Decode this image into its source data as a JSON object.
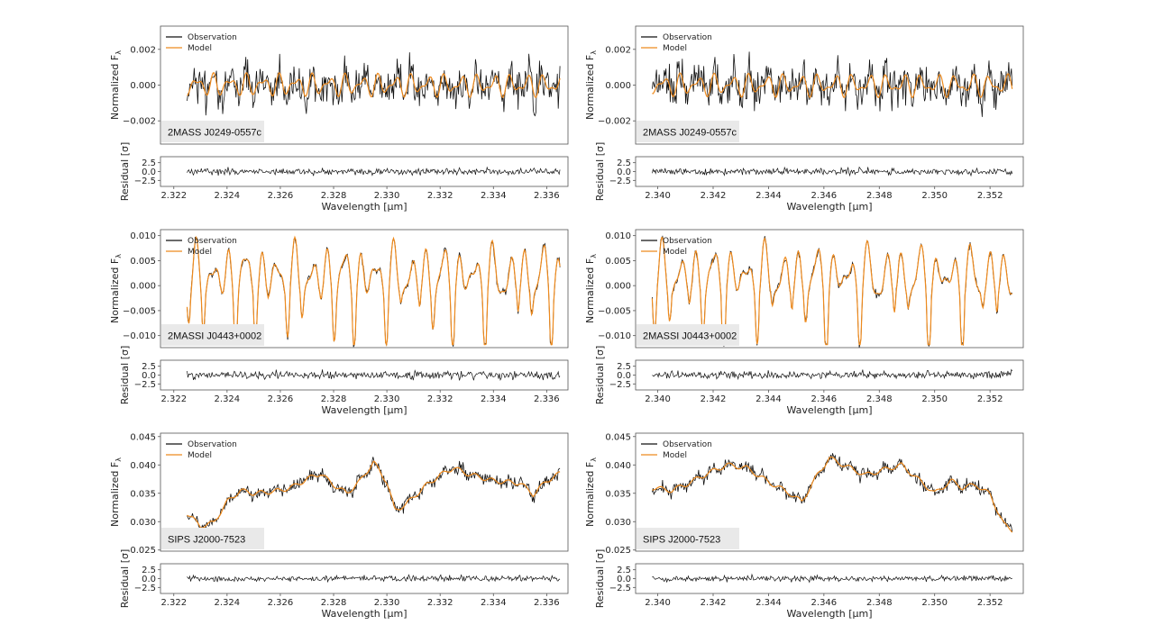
{
  "colors": {
    "observation": "#111111",
    "model": "#ee8a1d",
    "frame": "#555555",
    "tag_bg": "#e9e9e9"
  },
  "axes_text": {
    "ylabel_main": "Normalized F",
    "ylabel_main_sub": "λ",
    "ylabel_resid": "Residual [σ]",
    "xlabel": "Wavelength [μm]"
  },
  "legend": {
    "observation": "Observation",
    "model": "Model"
  },
  "chart_data": [
    {
      "type": "line",
      "panel": "row1-left",
      "object": "2MASS J0249-0557c",
      "xlim": [
        2.3215,
        2.3368
      ],
      "xticks": [
        "2.322",
        "2.324",
        "2.326",
        "2.328",
        "2.330",
        "2.332",
        "2.334",
        "2.336"
      ],
      "x_data_range": [
        2.3225,
        2.3365
      ],
      "ylim": [
        -0.0033,
        0.0033
      ],
      "yticks": [
        "0.002",
        "0.000",
        "−0.002"
      ],
      "ytick_values": [
        0.002,
        0.0,
        -0.002
      ],
      "resid_ylim": [
        -4.2,
        4.2
      ],
      "resid_yticks": [
        "2.5",
        "0.0",
        "−2.5"
      ],
      "resid_ytick_values": [
        2.5,
        0.0,
        -2.5
      ],
      "series": [
        {
          "name": "Observation",
          "trend": "noisy, mean 0, amplitude ~0.002"
        },
        {
          "name": "Model",
          "trend": "oscillating about 0, amplitude ~0.0007"
        }
      ],
      "residual_amplitude": 0.9
    },
    {
      "type": "line",
      "panel": "row1-right",
      "object": "2MASS J0249-0557c",
      "xlim": [
        2.3392,
        2.3532
      ],
      "xticks": [
        "2.340",
        "2.342",
        "2.344",
        "2.346",
        "2.348",
        "2.350",
        "2.352"
      ],
      "x_data_range": [
        2.3398,
        2.3528
      ],
      "ylim": [
        -0.0033,
        0.0033
      ],
      "yticks": [
        "0.002",
        "0.000",
        "−0.002"
      ],
      "ytick_values": [
        0.002,
        0.0,
        -0.002
      ],
      "resid_ylim": [
        -4.2,
        4.2
      ],
      "resid_yticks": [
        "2.5",
        "0.0",
        "−2.5"
      ],
      "resid_ytick_values": [
        2.5,
        0.0,
        -2.5
      ],
      "series": [
        {
          "name": "Observation",
          "trend": "noisy, mean 0, amplitude ~0.002"
        },
        {
          "name": "Model",
          "trend": "oscillating about 0, amplitude ~0.0007"
        }
      ],
      "residual_amplitude": 0.9
    },
    {
      "type": "line",
      "panel": "row2-left",
      "object": "2MASSI J0443+0002",
      "xlim": [
        2.3215,
        2.3368
      ],
      "xticks": [
        "2.322",
        "2.324",
        "2.326",
        "2.328",
        "2.330",
        "2.332",
        "2.334",
        "2.336"
      ],
      "x_data_range": [
        2.3225,
        2.3365
      ],
      "ylim": [
        -0.0124,
        0.0112
      ],
      "yticks": [
        "0.010",
        "0.005",
        "0.000",
        "−0.005",
        "−0.010"
      ],
      "ytick_values": [
        0.01,
        0.005,
        0.0,
        -0.005,
        -0.01
      ],
      "resid_ylim": [
        -4.2,
        4.2
      ],
      "resid_yticks": [
        "2.5",
        "0.0",
        "−2.5"
      ],
      "resid_ytick_values": [
        2.5,
        0.0,
        -2.5
      ],
      "series": [
        {
          "name": "Observation",
          "trend": "deep absorption lines, range -0.012 to 0.010"
        },
        {
          "name": "Model",
          "trend": "closely follows observation"
        }
      ],
      "residual_amplitude": 1.1
    },
    {
      "type": "line",
      "panel": "row2-right",
      "object": "2MASSI J0443+0002",
      "xlim": [
        2.3392,
        2.3532
      ],
      "xticks": [
        "2.340",
        "2.342",
        "2.344",
        "2.346",
        "2.348",
        "2.350",
        "2.352"
      ],
      "x_data_range": [
        2.3398,
        2.3528
      ],
      "ylim": [
        -0.0124,
        0.0112
      ],
      "yticks": [
        "0.010",
        "0.005",
        "0.000",
        "−0.005",
        "−0.010"
      ],
      "ytick_values": [
        0.01,
        0.005,
        0.0,
        -0.005,
        -0.01
      ],
      "resid_ylim": [
        -4.2,
        4.2
      ],
      "resid_yticks": [
        "2.5",
        "0.0",
        "−2.5"
      ],
      "resid_ytick_values": [
        2.5,
        0.0,
        -2.5
      ],
      "series": [
        {
          "name": "Observation",
          "trend": "deep absorption lines, range -0.012 to 0.010"
        },
        {
          "name": "Model",
          "trend": "closely follows observation"
        }
      ],
      "residual_amplitude": 1.1
    },
    {
      "type": "line",
      "panel": "row3-left",
      "object": "SIPS J2000-7523",
      "xlim": [
        2.3215,
        2.3368
      ],
      "xticks": [
        "2.322",
        "2.324",
        "2.326",
        "2.328",
        "2.330",
        "2.332",
        "2.334",
        "2.336"
      ],
      "x_data_range": [
        2.3225,
        2.3365
      ],
      "ylim": [
        0.0248,
        0.0456
      ],
      "yticks": [
        "0.045",
        "0.040",
        "0.035",
        "0.030",
        "0.025"
      ],
      "ytick_values": [
        0.045,
        0.04,
        0.035,
        0.03,
        0.025
      ],
      "resid_ylim": [
        -4.2,
        4.2
      ],
      "resid_yticks": [
        "2.5",
        "0.0",
        "−2.5"
      ],
      "resid_ytick_values": [
        2.5,
        0.0,
        -2.5
      ],
      "series": [
        {
          "name": "Observation",
          "trend": "rises 0.030 to ~0.041 with broad bands"
        },
        {
          "name": "Model",
          "trend": "smooth continuum through observation"
        }
      ],
      "residual_amplitude": 0.8,
      "profile": [
        [
          2.3225,
          0.0315
        ],
        [
          2.323,
          0.0292
        ],
        [
          2.3235,
          0.0298
        ],
        [
          2.324,
          0.0335
        ],
        [
          2.3245,
          0.0355
        ],
        [
          2.325,
          0.035
        ],
        [
          2.3255,
          0.0352
        ],
        [
          2.326,
          0.0355
        ],
        [
          2.3265,
          0.0362
        ],
        [
          2.327,
          0.0375
        ],
        [
          2.3275,
          0.0385
        ],
        [
          2.328,
          0.0365
        ],
        [
          2.3285,
          0.035
        ],
        [
          2.329,
          0.0372
        ],
        [
          2.3295,
          0.0405
        ],
        [
          2.33,
          0.037
        ],
        [
          2.3303,
          0.032
        ],
        [
          2.3307,
          0.033
        ],
        [
          2.3315,
          0.0365
        ],
        [
          2.332,
          0.0382
        ],
        [
          2.3325,
          0.0395
        ],
        [
          2.333,
          0.0385
        ],
        [
          2.334,
          0.0372
        ],
        [
          2.335,
          0.0368
        ],
        [
          2.3355,
          0.0348
        ],
        [
          2.336,
          0.0372
        ],
        [
          2.3365,
          0.0385
        ]
      ]
    },
    {
      "type": "line",
      "panel": "row3-right",
      "object": "SIPS J2000-7523",
      "xlim": [
        2.3392,
        2.3532
      ],
      "xticks": [
        "2.340",
        "2.342",
        "2.344",
        "2.346",
        "2.348",
        "2.350",
        "2.352"
      ],
      "x_data_range": [
        2.3398,
        2.3528
      ],
      "ylim": [
        0.0248,
        0.0456
      ],
      "yticks": [
        "0.045",
        "0.040",
        "0.035",
        "0.030",
        "0.025"
      ],
      "ytick_values": [
        0.045,
        0.04,
        0.035,
        0.03,
        0.025
      ],
      "resid_ylim": [
        -4.2,
        4.2
      ],
      "resid_yticks": [
        "2.5",
        "0.0",
        "−2.5"
      ],
      "resid_ytick_values": [
        2.5,
        0.0,
        -2.5
      ],
      "series": [
        {
          "name": "Observation",
          "trend": "broad bands 0.033-0.042, drops to 0.028 at red end"
        },
        {
          "name": "Model",
          "trend": "smooth continuum through observation"
        }
      ],
      "residual_amplitude": 0.8,
      "profile": [
        [
          2.3398,
          0.036
        ],
        [
          2.3405,
          0.0355
        ],
        [
          2.341,
          0.0365
        ],
        [
          2.3418,
          0.0385
        ],
        [
          2.3425,
          0.04
        ],
        [
          2.3432,
          0.0395
        ],
        [
          2.344,
          0.037
        ],
        [
          2.3447,
          0.0352
        ],
        [
          2.3452,
          0.0335
        ],
        [
          2.3458,
          0.0385
        ],
        [
          2.3462,
          0.0412
        ],
        [
          2.3468,
          0.0398
        ],
        [
          2.3475,
          0.0382
        ],
        [
          2.3482,
          0.0392
        ],
        [
          2.3488,
          0.04
        ],
        [
          2.3494,
          0.0375
        ],
        [
          2.35,
          0.035
        ],
        [
          2.3506,
          0.0372
        ],
        [
          2.351,
          0.036
        ],
        [
          2.3515,
          0.0365
        ],
        [
          2.352,
          0.0348
        ],
        [
          2.3525,
          0.0295
        ],
        [
          2.3528,
          0.0285
        ]
      ]
    }
  ]
}
